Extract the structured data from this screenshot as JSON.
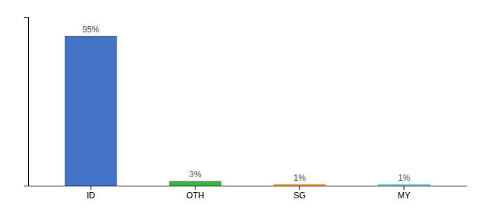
{
  "chart_data": {
    "type": "bar",
    "categories": [
      "ID",
      "OTH",
      "SG",
      "MY"
    ],
    "values": [
      95,
      3,
      1,
      1
    ],
    "value_labels": [
      "95%",
      "3%",
      "1%",
      "1%"
    ],
    "colors": [
      "#4472c4",
      "#3db346",
      "#e8a838",
      "#7ec8e3"
    ],
    "ylim": [
      0,
      107
    ],
    "yticks": [],
    "grid": false,
    "data_labels": true,
    "tick_labels": "x"
  }
}
